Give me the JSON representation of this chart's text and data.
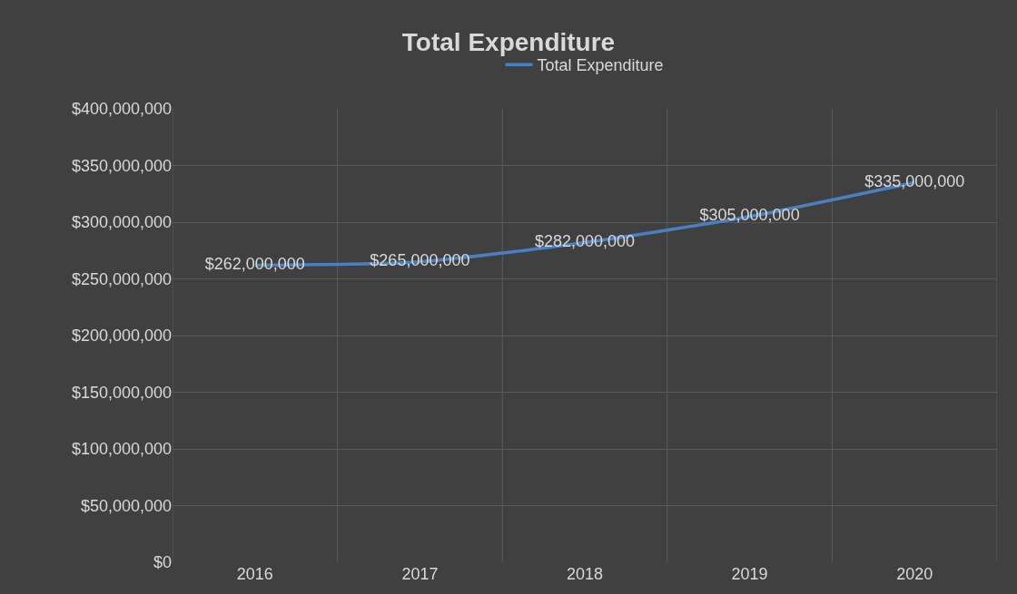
{
  "chart_data": {
    "type": "line",
    "title": "Total Expenditure",
    "categories": [
      "2016",
      "2017",
      "2018",
      "2019",
      "2020"
    ],
    "series": [
      {
        "name": "Total Expenditure",
        "color": "#4a7fc1",
        "values": [
          262000000,
          265000000,
          282000000,
          305000000,
          335000000
        ]
      }
    ],
    "ylim": [
      0,
      400000000
    ],
    "yticks": [
      {
        "value": 0,
        "label": "$0"
      },
      {
        "value": 50000000,
        "label": "$50,000,000"
      },
      {
        "value": 100000000,
        "label": "$100,000,000"
      },
      {
        "value": 150000000,
        "label": "$150,000,000"
      },
      {
        "value": 200000000,
        "label": "$200,000,000"
      },
      {
        "value": 250000000,
        "label": "$250,000,000"
      },
      {
        "value": 300000000,
        "label": "$300,000,000"
      },
      {
        "value": 350000000,
        "label": "$350,000,000"
      },
      {
        "value": 400000000,
        "label": "$400,000,000"
      }
    ],
    "value_labels": [
      "$262,000,000",
      "$265,000,000",
      "$282,000,000",
      "$305,000,000",
      "$335,000,000"
    ],
    "grid": true,
    "legend": "top",
    "marker": "none",
    "line_style": "solid"
  }
}
